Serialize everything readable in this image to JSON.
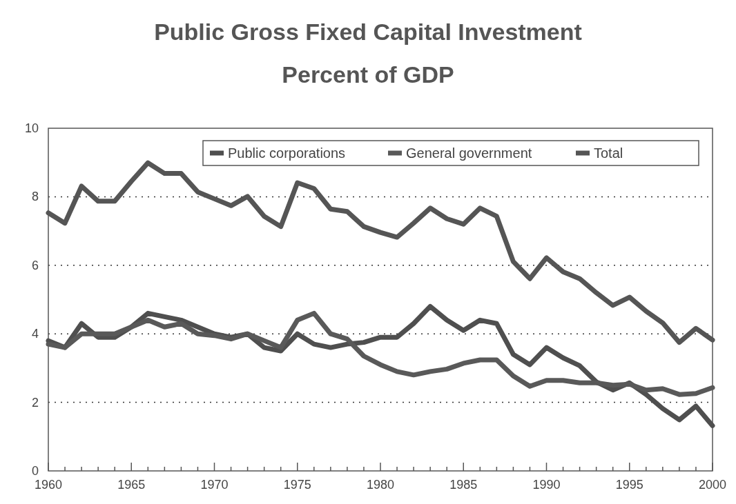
{
  "chart_data": {
    "type": "line",
    "title": "Public Gross Fixed Capital Investment",
    "subtitle": "Percent of GDP",
    "x": [
      1960,
      1961,
      1962,
      1963,
      1964,
      1965,
      1966,
      1967,
      1968,
      1969,
      1970,
      1971,
      1972,
      1973,
      1974,
      1975,
      1976,
      1977,
      1978,
      1979,
      1980,
      1981,
      1982,
      1983,
      1984,
      1985,
      1986,
      1987,
      1988,
      1989,
      1990,
      1991,
      1992,
      1993,
      1994,
      1995,
      1996,
      1997,
      1998,
      1999,
      2000
    ],
    "series": [
      {
        "name": "Public corporations",
        "color": "#4f4f4f",
        "values": [
          3.8,
          3.6,
          4.3,
          3.9,
          3.9,
          4.2,
          4.6,
          4.5,
          4.4,
          4.2,
          4.0,
          3.9,
          4.0,
          3.6,
          3.5,
          4.0,
          3.7,
          3.6,
          3.7,
          3.75,
          3.9,
          3.9,
          4.3,
          4.8,
          4.4,
          4.1,
          4.4,
          4.3,
          3.4,
          3.1,
          3.6,
          3.3,
          3.07,
          2.6,
          2.36,
          2.57,
          2.23,
          1.82,
          1.49,
          1.89,
          1.32
        ]
      },
      {
        "name": "General government",
        "color": "#595959",
        "values": [
          3.7,
          3.6,
          4.0,
          4.0,
          4.0,
          4.2,
          4.4,
          4.2,
          4.3,
          4.0,
          3.95,
          3.85,
          4.0,
          3.8,
          3.6,
          4.4,
          4.6,
          4.0,
          3.85,
          3.35,
          3.1,
          2.9,
          2.8,
          2.9,
          2.97,
          3.14,
          3.24,
          3.24,
          2.77,
          2.47,
          2.64,
          2.64,
          2.57,
          2.57,
          2.5,
          2.53,
          2.36,
          2.4,
          2.23,
          2.26,
          2.43
        ]
      },
      {
        "name": "Total",
        "color": "#555555",
        "values": [
          7.53,
          7.23,
          8.31,
          7.87,
          7.87,
          8.45,
          8.99,
          8.68,
          8.68,
          8.14,
          7.94,
          7.74,
          8.01,
          7.43,
          7.13,
          8.41,
          8.24,
          7.64,
          7.57,
          7.13,
          6.96,
          6.82,
          7.23,
          7.67,
          7.36,
          7.2,
          7.67,
          7.43,
          6.11,
          5.61,
          6.22,
          5.81,
          5.61,
          5.2,
          4.83,
          5.07,
          4.66,
          4.32,
          3.75,
          4.16,
          3.82
        ]
      }
    ],
    "xlim": [
      1960,
      2000
    ],
    "xticks": [
      1960,
      {
        "value": 1961,
        "label": null
      },
      {
        "value": 1962,
        "label": null
      },
      {
        "value": 1963,
        "label": null
      },
      {
        "value": 1964,
        "label": null
      },
      1965,
      {
        "value": 1966,
        "label": null
      },
      {
        "value": 1967,
        "label": null
      },
      {
        "value": 1968,
        "label": null
      },
      {
        "value": 1969,
        "label": null
      },
      1970,
      {
        "value": 1971,
        "label": null
      },
      {
        "value": 1972,
        "label": null
      },
      {
        "value": 1973,
        "label": null
      },
      {
        "value": 1974,
        "label": null
      },
      1975,
      {
        "value": 1976,
        "label": null
      },
      {
        "value": 1977,
        "label": null
      },
      {
        "value": 1978,
        "label": null
      },
      {
        "value": 1979,
        "label": null
      },
      1980,
      {
        "value": 1981,
        "label": null
      },
      {
        "value": 1982,
        "label": null
      },
      {
        "value": 1983,
        "label": null
      },
      {
        "value": 1984,
        "label": null
      },
      1985,
      {
        "value": 1986,
        "label": null
      },
      {
        "value": 1987,
        "label": null
      },
      {
        "value": 1988,
        "label": null
      },
      {
        "value": 1989,
        "label": null
      },
      1990,
      {
        "value": 1991,
        "label": null
      },
      {
        "value": 1992,
        "label": null
      },
      {
        "value": 1993,
        "label": null
      },
      {
        "value": 1994,
        "label": null
      },
      1995,
      {
        "value": 1996,
        "label": null
      },
      {
        "value": 1997,
        "label": null
      },
      {
        "value": 1998,
        "label": null
      },
      {
        "value": 1999,
        "label": null
      },
      2000
    ],
    "ylim": [
      0,
      10
    ],
    "yticks": [
      0,
      2,
      4,
      6,
      8,
      10
    ],
    "grid": "y",
    "legend": "top right",
    "line_style": "solid",
    "marker": "none"
  }
}
